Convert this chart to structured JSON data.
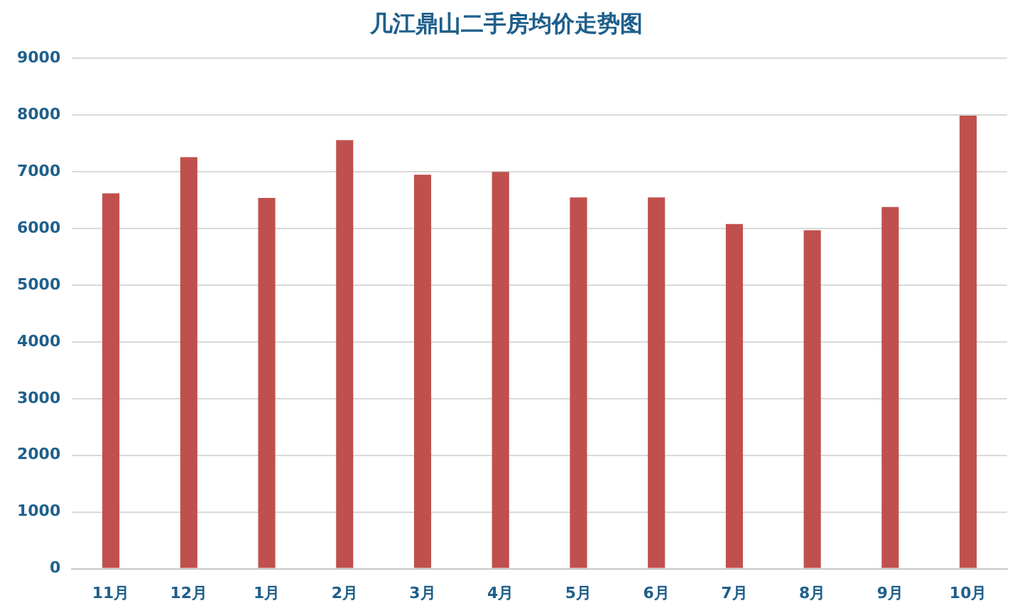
{
  "chart_data": {
    "type": "bar",
    "title": "几江鼎山二手房均价走势图",
    "categories": [
      "11月",
      "12月",
      "1月",
      "2月",
      "3月",
      "4月",
      "5月",
      "6月",
      "7月",
      "8月",
      "9月",
      "10月"
    ],
    "values": [
      6620,
      7260,
      6540,
      7560,
      6950,
      7000,
      6550,
      6550,
      6080,
      5970,
      6380,
      7990
    ],
    "color": "#c0504d",
    "ylim": [
      0,
      9000
    ],
    "yticks": [
      0,
      1000,
      2000,
      3000,
      4000,
      5000,
      6000,
      7000,
      8000,
      9000
    ],
    "grid": "y"
  }
}
